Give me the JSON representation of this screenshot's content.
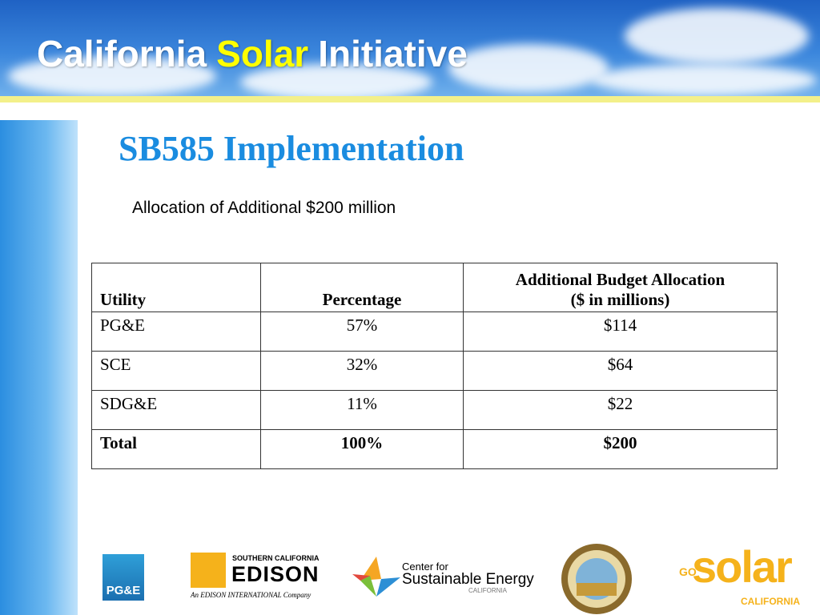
{
  "header": {
    "title": [
      "California",
      "Solar",
      "Initiative"
    ]
  },
  "heading": "SB585 Implementation",
  "subtitle": "Allocation of Additional $200 million",
  "table": {
    "columns": [
      "Utility",
      "Percentage",
      [
        "Additional Budget Allocation",
        "($ in millions)"
      ]
    ],
    "rows": [
      [
        "PG&E",
        "57%",
        "$114"
      ],
      [
        "SCE",
        "32%",
        "$64"
      ],
      [
        "SDG&E",
        "11%",
        "$22"
      ],
      [
        "Total",
        "100%",
        "$200"
      ]
    ]
  },
  "logos": {
    "pge": "PG&E",
    "edison": {
      "top": "SOUTHERN CALIFORNIA",
      "name": "EDISON",
      "tagline": "An EDISON INTERNATIONAL Company"
    },
    "cse": {
      "line1": "Center for",
      "line2": "Sustainable Energy",
      "line3": "CALIFORNIA"
    },
    "gosolar": {
      "go": "GO",
      "solar": "solar",
      "state": "CALIFORNIA"
    }
  }
}
